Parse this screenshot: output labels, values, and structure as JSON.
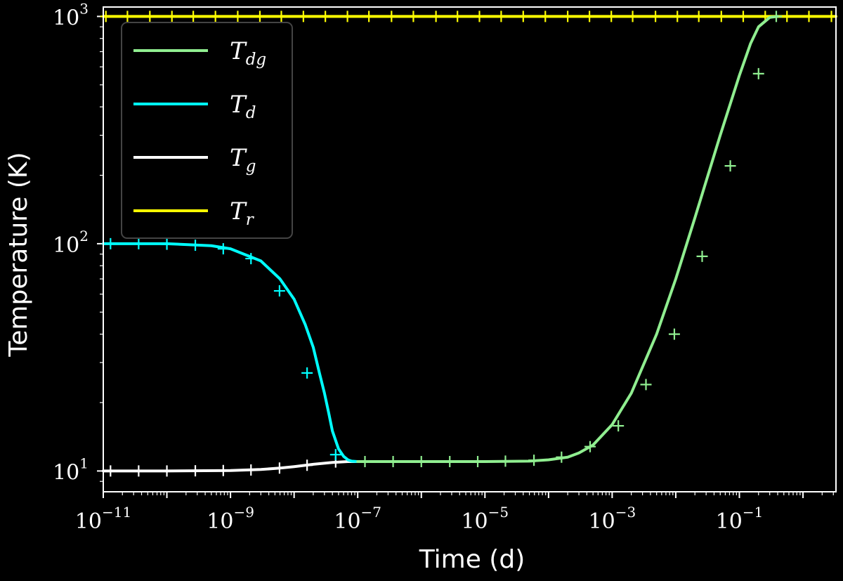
{
  "chart_data": {
    "type": "line",
    "xlabel": "Time (d)",
    "ylabel": "Temperature (K)",
    "xscale": "log",
    "yscale": "log",
    "xlim": [
      1e-11,
      3.3
    ],
    "ylim": [
      8.1,
      1100
    ],
    "xticks": [
      {
        "base": "10",
        "exp": "−11",
        "value": 1e-11
      },
      {
        "base": "10",
        "exp": "−9",
        "value": 1e-09
      },
      {
        "base": "10",
        "exp": "−7",
        "value": 1e-07
      },
      {
        "base": "10",
        "exp": "−5",
        "value": 1e-05
      },
      {
        "base": "10",
        "exp": "−3",
        "value": 0.001
      },
      {
        "base": "10",
        "exp": "−1",
        "value": 0.1
      }
    ],
    "yticks": [
      {
        "base": "10",
        "exp": "1",
        "value": 10
      },
      {
        "base": "10",
        "exp": "2",
        "value": 100
      },
      {
        "base": "10",
        "exp": "3",
        "value": 1000
      }
    ],
    "legend": {
      "position": "upper-left",
      "entries": [
        {
          "symbol": "T",
          "sub": "dg",
          "color": "#90ee90"
        },
        {
          "symbol": "T",
          "sub": "d",
          "color": "#00ffff"
        },
        {
          "symbol": "T",
          "sub": "g",
          "color": "#ffffff"
        },
        {
          "symbol": "T",
          "sub": "r",
          "color": "#ffff00"
        }
      ]
    },
    "series": [
      {
        "key": "Tr",
        "color": "#ffff00",
        "marker": "+",
        "x": [
          1e-11,
          1.0,
          3.3
        ],
        "y": [
          1000,
          1000,
          1000
        ],
        "marker_x": [
          1.1e-11,
          2.4e-11,
          5.4e-11,
          1.2e-10,
          2.6e-10,
          5.8e-10,
          1.3e-09,
          2.9e-09,
          6.3e-09,
          1.4e-08,
          3.1e-08,
          6.9e-08,
          1.5e-07,
          3.4e-07,
          7.5e-07,
          1.7e-06,
          3.7e-06,
          8.2e-06,
          1.8e-05,
          4e-05,
          8.9e-05,
          0.0002,
          0.00044,
          0.00097,
          0.0021,
          0.0048,
          0.0106,
          0.023,
          0.052,
          0.115,
          0.255,
          0.56,
          1.24,
          2.8
        ],
        "marker_y": [
          1000,
          1000,
          1000,
          1000,
          1000,
          1000,
          1000,
          1000,
          1000,
          1000,
          1000,
          1000,
          1000,
          1000,
          1000,
          1000,
          1000,
          1000,
          1000,
          1000,
          1000,
          1000,
          1000,
          1000,
          1000,
          1000,
          1000,
          1000,
          1000,
          1000,
          1000,
          1000,
          1000,
          1000
        ]
      },
      {
        "key": "Tg",
        "color": "#ffffff",
        "marker": "+",
        "x": [
          1e-11,
          1e-10,
          1e-09,
          3e-09,
          6e-09,
          1e-08,
          2e-08,
          4e-08,
          7e-08,
          1e-07
        ],
        "y": [
          10.0,
          10.0,
          10.05,
          10.15,
          10.3,
          10.45,
          10.7,
          10.9,
          11.0,
          11.0
        ],
        "marker_x": [
          1.3e-11,
          3.6e-11,
          1e-10,
          2.8e-10,
          7.7e-10,
          2.1e-09,
          5.9e-09,
          1.6e-08,
          4.5e-08
        ],
        "marker_y": [
          10.0,
          10.0,
          10.0,
          10.02,
          10.05,
          10.1,
          10.3,
          10.6,
          10.95
        ]
      },
      {
        "key": "Td",
        "color": "#00ffff",
        "marker": "+",
        "x": [
          1e-11,
          1e-10,
          5e-10,
          1e-09,
          3e-09,
          6e-09,
          1e-08,
          1.5e-08,
          2e-08,
          2.5e-08,
          3e-08,
          3.5e-08,
          4e-08,
          5e-08,
          6e-08,
          7e-08,
          8e-08,
          1e-07
        ],
        "y": [
          100,
          100,
          98,
          95,
          84,
          70,
          57,
          44,
          35,
          27,
          22,
          18,
          15,
          12.5,
          11.6,
          11.2,
          11.05,
          11.0
        ],
        "marker_x": [
          1.3e-11,
          3.6e-11,
          1e-10,
          2.8e-10,
          7.7e-10,
          2.1e-09,
          5.9e-09,
          1.6e-08,
          4.5e-08
        ],
        "marker_y": [
          100,
          100,
          99.5,
          98.5,
          95,
          86,
          62,
          27,
          11.8
        ]
      },
      {
        "key": "Tdg",
        "color": "#90ee90",
        "marker": "+",
        "x": [
          1e-07,
          1e-06,
          1e-05,
          5e-05,
          0.0001,
          0.0002,
          0.0003,
          0.0005,
          0.001,
          0.002,
          0.005,
          0.01,
          0.02,
          0.05,
          0.1,
          0.15,
          0.2,
          0.3,
          0.4
        ],
        "y": [
          11.0,
          11.0,
          11.0,
          11.05,
          11.2,
          11.5,
          12.0,
          13.0,
          16.0,
          22.0,
          40.0,
          70.0,
          130,
          300,
          550,
          760,
          900,
          990,
          1000
        ],
        "marker_x": [
          1.3e-07,
          3.6e-07,
          1e-06,
          2.8e-06,
          7.7e-06,
          2.1e-05,
          5.9e-05,
          0.00016,
          0.00045,
          0.00125,
          0.0034,
          0.0095,
          0.026,
          0.072,
          0.2,
          0.38
        ],
        "marker_y": [
          11.0,
          11.0,
          11.0,
          11.0,
          11.0,
          11.05,
          11.15,
          11.5,
          12.8,
          15.8,
          24.0,
          40.0,
          88,
          220,
          560,
          1000
        ]
      }
    ]
  }
}
